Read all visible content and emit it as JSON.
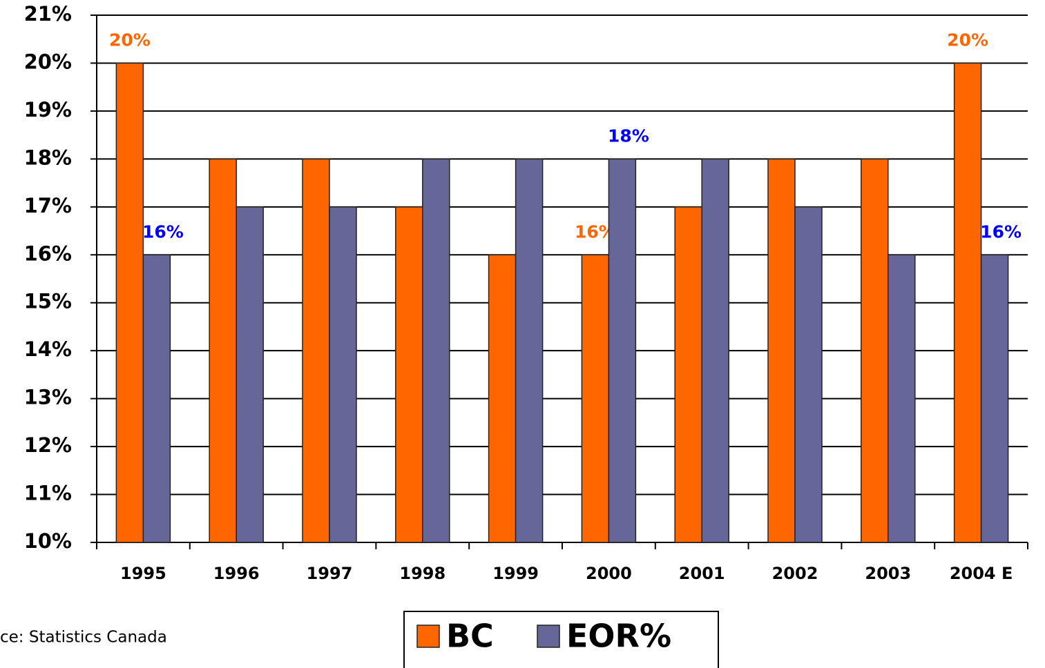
{
  "chart_data": {
    "type": "bar",
    "categories": [
      "1995",
      "1996",
      "1997",
      "1998",
      "1999",
      "2000",
      "2001",
      "2002",
      "2003",
      "2004 E"
    ],
    "series": [
      {
        "name": "BC",
        "color": "#ff6600",
        "values": [
          20,
          18,
          18,
          17,
          16,
          16,
          17,
          18,
          18,
          20
        ],
        "value_labels": [
          "20%",
          null,
          null,
          null,
          null,
          "16%",
          null,
          null,
          null,
          "20%"
        ],
        "label_color": "#ff6600"
      },
      {
        "name": "EOR%",
        "color": "#666699",
        "values": [
          16,
          17,
          17,
          18,
          18,
          18,
          18,
          17,
          16,
          16
        ],
        "value_labels": [
          "16%",
          null,
          null,
          null,
          null,
          "18%",
          null,
          null,
          null,
          "16%"
        ],
        "label_color": "#0000ff"
      }
    ],
    "ylim": [
      10,
      21
    ],
    "yticks": [
      {
        "value": 10,
        "label": "10%"
      },
      {
        "value": 11,
        "label": "11%"
      },
      {
        "value": 12,
        "label": "12%"
      },
      {
        "value": 13,
        "label": "13%"
      },
      {
        "value": 14,
        "label": "14%"
      },
      {
        "value": 15,
        "label": "15%"
      },
      {
        "value": 16,
        "label": "16%"
      },
      {
        "value": 17,
        "label": "17%"
      },
      {
        "value": 18,
        "label": "18%"
      },
      {
        "value": 19,
        "label": "19%"
      },
      {
        "value": 20,
        "label": "20%"
      },
      {
        "value": 21,
        "label": "21%"
      }
    ],
    "grid": true,
    "legend": "bottom",
    "source": "ce: Statistics Canada"
  }
}
